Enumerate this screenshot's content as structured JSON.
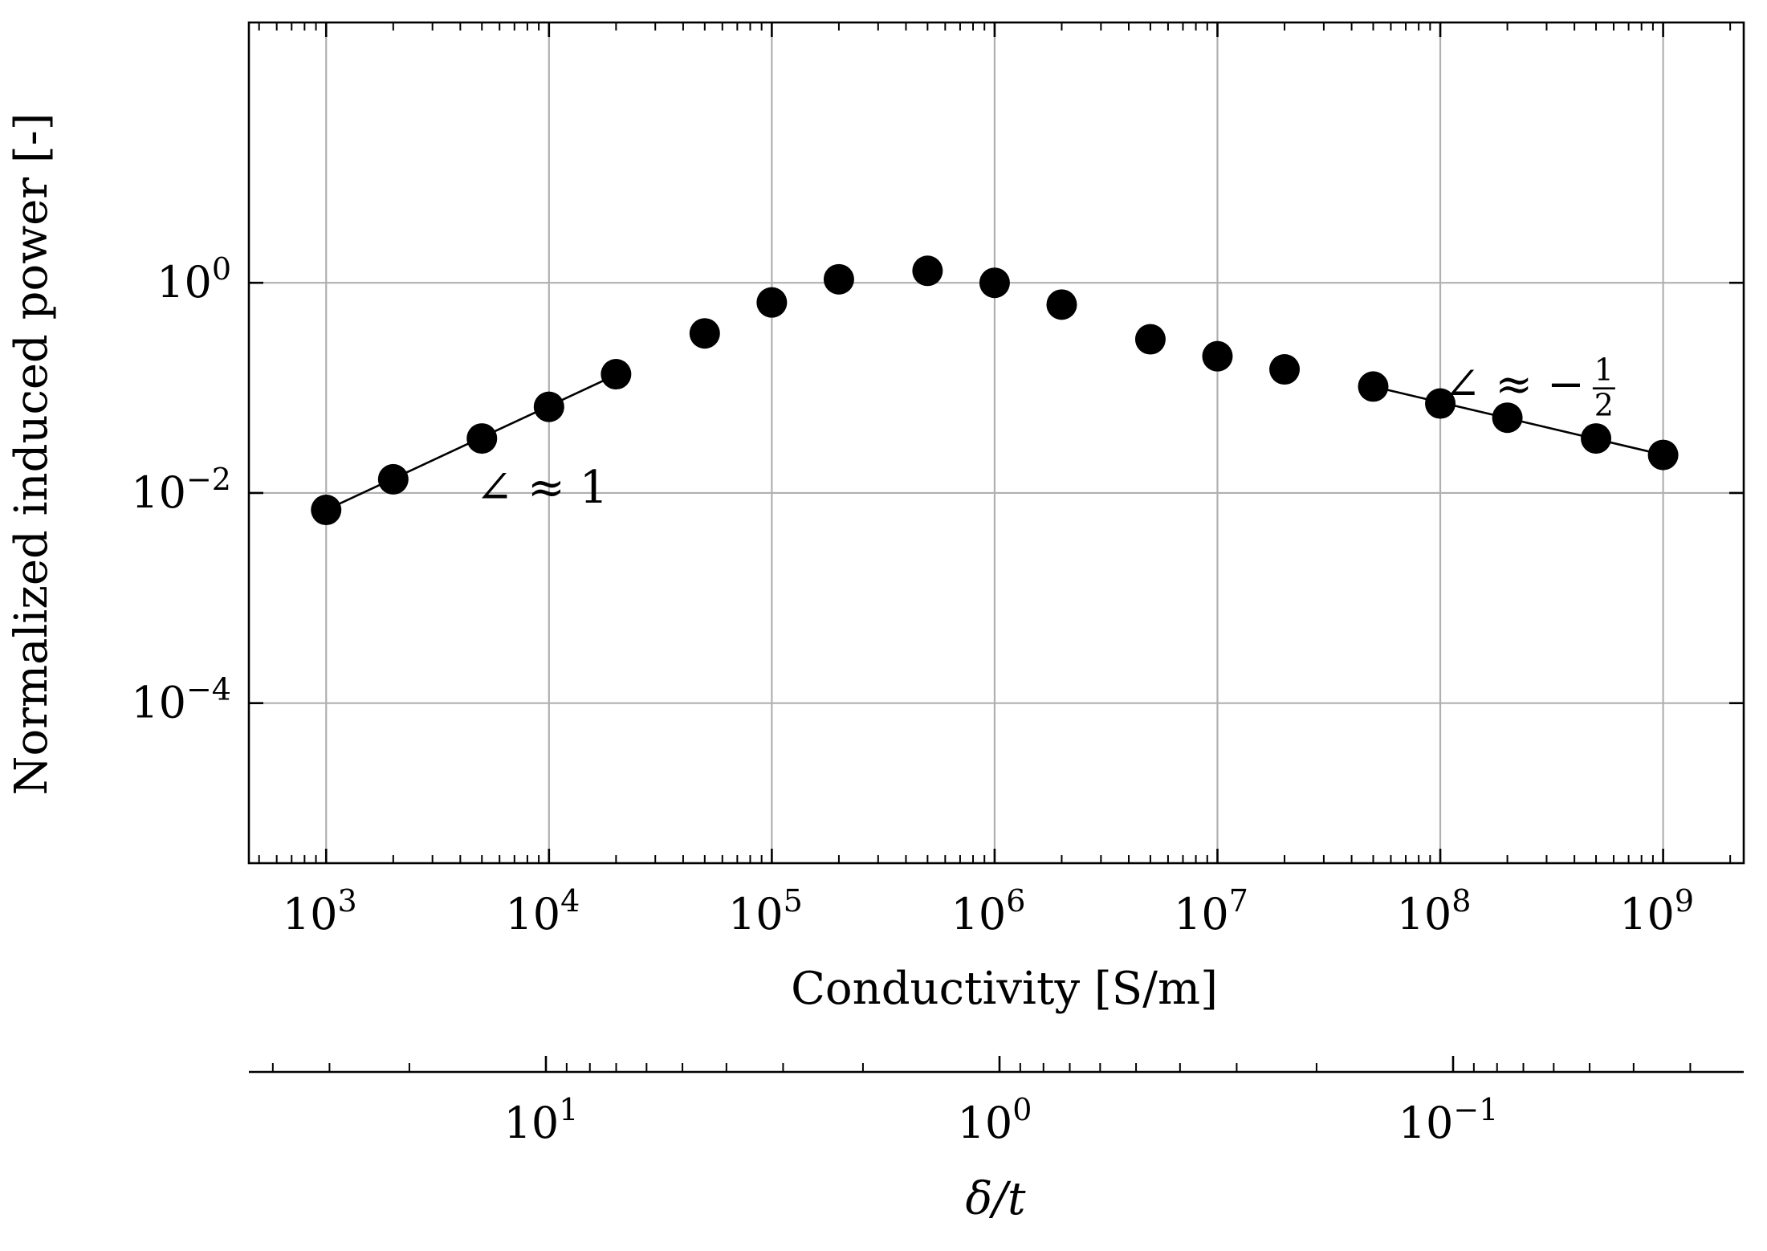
{
  "chart_data": {
    "type": "scatter",
    "title": "",
    "xlabel": "Conductivity [S/m]",
    "ylabel": "Normalized induced power [-]",
    "secondary_xlabel": "δ/t",
    "x_scale": "log",
    "y_scale": "log",
    "xlim": [
      450,
      2300000000.0
    ],
    "ylim": [
      3e-06,
      300
    ],
    "grid": true,
    "x": [
      1000,
      2000,
      5000,
      10000,
      20000,
      50000,
      100000,
      200000,
      500000,
      1000000,
      2000000,
      5000000,
      10000000,
      20000000,
      50000000,
      100000000,
      200000000,
      500000000,
      1000000000
    ],
    "y": [
      0.0069,
      0.0135,
      0.033,
      0.066,
      0.135,
      0.33,
      0.65,
      1.08,
      1.3,
      1.0,
      0.62,
      0.29,
      0.2,
      0.15,
      0.103,
      0.071,
      0.052,
      0.033,
      0.023
    ],
    "x_ticks": [
      {
        "value": 1000,
        "base": "10",
        "exp": "3"
      },
      {
        "value": 10000,
        "base": "10",
        "exp": "4"
      },
      {
        "value": 100000,
        "base": "10",
        "exp": "5"
      },
      {
        "value": 1000000,
        "base": "10",
        "exp": "6"
      },
      {
        "value": 10000000,
        "base": "10",
        "exp": "7"
      },
      {
        "value": 100000000,
        "base": "10",
        "exp": "8"
      },
      {
        "value": 1000000000,
        "base": "10",
        "exp": "9"
      }
    ],
    "y_ticks": [
      {
        "value": 1,
        "base": "10",
        "exp": "0"
      },
      {
        "value": 0.01,
        "base": "10",
        "exp": "−2"
      },
      {
        "value": 0.0001,
        "base": "10",
        "exp": "−4"
      }
    ],
    "secondary_ticks": [
      {
        "value": 10,
        "base": "10",
        "exp": "1"
      },
      {
        "value": 1,
        "base": "10",
        "exp": "0"
      },
      {
        "value": 0.1,
        "base": "10",
        "exp": "−1"
      }
    ],
    "fit_lines": [
      {
        "x_start": 1000,
        "y_start": 0.0069,
        "x_end": 18000,
        "y_end": 0.12
      },
      {
        "x_start": 50000000,
        "y_start": 0.103,
        "x_end": 1150000000,
        "y_end": 0.0215
      }
    ],
    "annotations": [
      {
        "text": "∠ ≈ 1",
        "x": 5000,
        "y": 0.0115
      },
      {
        "text": "∠ ≈  −",
        "frac_num": "1",
        "frac_den": "2",
        "x": 110000000,
        "y": 0.11
      }
    ]
  }
}
